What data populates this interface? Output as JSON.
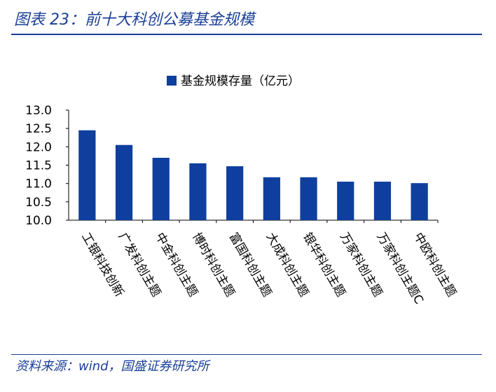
{
  "header": {
    "title": "图表 23：前十大科创公募基金规模"
  },
  "footer": {
    "source": "资料来源：wind，国盛证券研究所"
  },
  "colors": {
    "bar": "#0f3f9e",
    "header_text": "#1a3f96"
  },
  "chart_data": {
    "type": "bar",
    "categories": [
      "工银科技创新",
      "广发科创主题",
      "中金科创主题",
      "博时科创主题",
      "富国科创主题",
      "大成科创主题",
      "银华科创主题",
      "万家科创主题",
      "万家科创主题C",
      "中欧科创主题"
    ],
    "series": [
      {
        "name": "基金规模存量（亿元）",
        "values": [
          12.45,
          12.05,
          11.7,
          11.55,
          11.47,
          11.17,
          11.17,
          11.05,
          11.05,
          11.01
        ]
      }
    ],
    "ylim": [
      10.0,
      13.0
    ],
    "yticks": [
      "10.0",
      "10.5",
      "11.0",
      "11.5",
      "12.0",
      "12.5",
      "13.0"
    ],
    "xlabel": "",
    "ylabel": "",
    "grid": false,
    "legend_position": "top-center"
  }
}
